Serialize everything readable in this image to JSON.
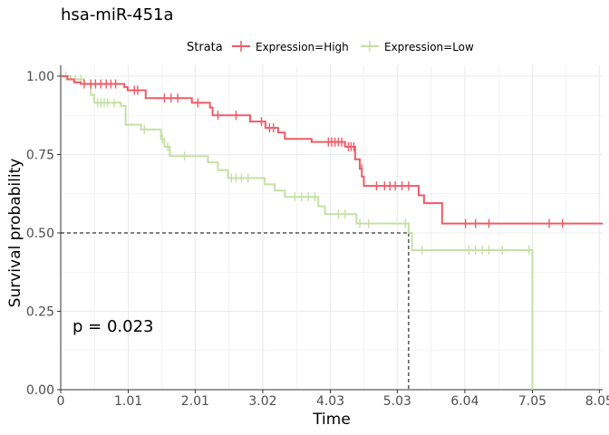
{
  "title": "hsa-miR-451a",
  "legend": {
    "title": "Strata",
    "entries": [
      "Expression=High",
      "Expression=Low"
    ]
  },
  "colors": {
    "high": "#ef5b67",
    "low": "#c5e0a4",
    "grid": "#ebebeb",
    "axis": "#333333"
  },
  "p_value_label": "p = 0.023",
  "chart_data": {
    "type": "line",
    "title": "hsa-miR-451a",
    "xlabel": "Time",
    "ylabel": "Survival probability",
    "xlim": [
      0,
      8.1
    ],
    "ylim": [
      0,
      1
    ],
    "x_ticks": [
      0,
      1.01,
      2.01,
      3.02,
      4.03,
      5.03,
      6.04,
      7.05,
      8.05
    ],
    "x_tick_labels": [
      "0",
      "1.01",
      "2.01",
      "3.02",
      "4.03",
      "5.03",
      "6.04",
      "7.05",
      "8.05"
    ],
    "y_ticks": [
      0,
      0.25,
      0.5,
      0.75,
      1
    ],
    "y_tick_labels": [
      "0.00",
      "0.25",
      "0.50",
      "0.75",
      "1.00"
    ],
    "grid": true,
    "legend_position": "top",
    "median_survival": {
      "x": 5.2,
      "y": 0.5
    },
    "series": [
      {
        "name": "Expression=High",
        "color": "#ef5b67",
        "steps": [
          [
            0,
            1.0
          ],
          [
            0.1,
            0.99
          ],
          [
            0.2,
            0.98
          ],
          [
            0.3,
            0.975
          ],
          [
            0.95,
            0.965
          ],
          [
            1.0,
            0.955
          ],
          [
            1.27,
            0.93
          ],
          [
            1.96,
            0.915
          ],
          [
            2.23,
            0.9
          ],
          [
            2.27,
            0.875
          ],
          [
            2.83,
            0.855
          ],
          [
            3.06,
            0.835
          ],
          [
            3.25,
            0.82
          ],
          [
            3.35,
            0.8
          ],
          [
            3.75,
            0.79
          ],
          [
            4.25,
            0.775
          ],
          [
            4.4,
            0.735
          ],
          [
            4.47,
            0.705
          ],
          [
            4.5,
            0.68
          ],
          [
            4.53,
            0.65
          ],
          [
            5.35,
            0.62
          ],
          [
            5.43,
            0.595
          ],
          [
            5.7,
            0.53
          ],
          [
            8.1,
            0.53
          ]
        ],
        "censors": [
          [
            0.35,
            0.975
          ],
          [
            0.45,
            0.975
          ],
          [
            0.52,
            0.975
          ],
          [
            0.6,
            0.975
          ],
          [
            0.68,
            0.975
          ],
          [
            0.75,
            0.975
          ],
          [
            0.82,
            0.975
          ],
          [
            1.1,
            0.955
          ],
          [
            1.15,
            0.955
          ],
          [
            1.55,
            0.93
          ],
          [
            1.65,
            0.93
          ],
          [
            1.75,
            0.93
          ],
          [
            2.05,
            0.915
          ],
          [
            2.35,
            0.875
          ],
          [
            2.62,
            0.875
          ],
          [
            3.0,
            0.855
          ],
          [
            3.12,
            0.835
          ],
          [
            3.18,
            0.835
          ],
          [
            4.0,
            0.79
          ],
          [
            4.05,
            0.79
          ],
          [
            4.1,
            0.79
          ],
          [
            4.15,
            0.79
          ],
          [
            4.2,
            0.79
          ],
          [
            4.3,
            0.775
          ],
          [
            4.34,
            0.775
          ],
          [
            4.38,
            0.775
          ],
          [
            4.5,
            0.705
          ],
          [
            4.72,
            0.65
          ],
          [
            4.84,
            0.65
          ],
          [
            4.92,
            0.65
          ],
          [
            5.0,
            0.65
          ],
          [
            5.1,
            0.65
          ],
          [
            5.2,
            0.65
          ],
          [
            6.05,
            0.53
          ],
          [
            6.2,
            0.53
          ],
          [
            6.4,
            0.53
          ],
          [
            7.3,
            0.53
          ],
          [
            7.5,
            0.53
          ]
        ]
      },
      {
        "name": "Expression=Low",
        "color": "#c5e0a4",
        "steps": [
          [
            0,
            1.0
          ],
          [
            0.15,
            0.99
          ],
          [
            0.35,
            0.975
          ],
          [
            0.45,
            0.94
          ],
          [
            0.5,
            0.915
          ],
          [
            0.9,
            0.905
          ],
          [
            0.97,
            0.845
          ],
          [
            1.2,
            0.83
          ],
          [
            1.5,
            0.8
          ],
          [
            1.55,
            0.775
          ],
          [
            1.63,
            0.745
          ],
          [
            2.2,
            0.725
          ],
          [
            2.35,
            0.7
          ],
          [
            2.5,
            0.675
          ],
          [
            3.05,
            0.655
          ],
          [
            3.2,
            0.635
          ],
          [
            3.35,
            0.615
          ],
          [
            3.85,
            0.585
          ],
          [
            3.95,
            0.56
          ],
          [
            4.42,
            0.53
          ],
          [
            5.2,
            0.5
          ],
          [
            5.25,
            0.445
          ],
          [
            7.05,
            0.0
          ]
        ],
        "censors": [
          [
            0.08,
            1.0
          ],
          [
            0.22,
            0.99
          ],
          [
            0.3,
            0.99
          ],
          [
            0.55,
            0.915
          ],
          [
            0.6,
            0.915
          ],
          [
            0.65,
            0.915
          ],
          [
            0.7,
            0.915
          ],
          [
            0.8,
            0.915
          ],
          [
            1.25,
            0.83
          ],
          [
            1.52,
            0.8
          ],
          [
            1.6,
            0.775
          ],
          [
            1.85,
            0.745
          ],
          [
            2.55,
            0.675
          ],
          [
            2.62,
            0.675
          ],
          [
            2.7,
            0.675
          ],
          [
            2.8,
            0.675
          ],
          [
            3.5,
            0.615
          ],
          [
            3.6,
            0.615
          ],
          [
            3.7,
            0.615
          ],
          [
            3.8,
            0.615
          ],
          [
            4.15,
            0.56
          ],
          [
            4.25,
            0.56
          ],
          [
            4.47,
            0.53
          ],
          [
            4.6,
            0.53
          ],
          [
            5.15,
            0.53
          ],
          [
            5.4,
            0.445
          ],
          [
            6.1,
            0.445
          ],
          [
            6.2,
            0.445
          ],
          [
            6.3,
            0.445
          ],
          [
            6.4,
            0.445
          ],
          [
            6.6,
            0.445
          ],
          [
            7.0,
            0.445
          ]
        ]
      }
    ]
  }
}
